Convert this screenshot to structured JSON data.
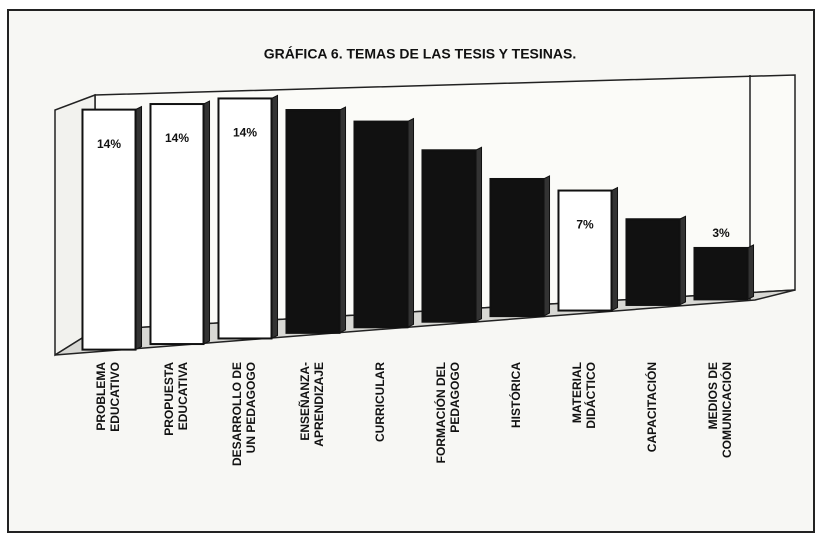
{
  "chart_data": {
    "type": "bar3d",
    "title": "GRÁFICA 6. TEMAS DE LAS TESIS Y TESINAS.",
    "categories": [
      [
        "PROBLEMA",
        "EDUCATIVO"
      ],
      [
        "PROPUESTA",
        "EDUCATIVA"
      ],
      [
        "DESARROLLO DE",
        "UN PEDAGOGO"
      ],
      [
        "ENSEÑANZA-",
        "APRENDIZAJE"
      ],
      [
        "CURRICULAR"
      ],
      [
        "FORMACIÓN DEL",
        "PEDAGOGO"
      ],
      [
        "HISTÓRICA"
      ],
      [
        "MATERIAL",
        "DIDÁCTICO"
      ],
      [
        "CAPACITACIÓN"
      ],
      [
        "MEDIOS DE",
        "COMUNICACIÓN"
      ]
    ],
    "values": [
      14,
      14,
      14,
      13,
      12,
      10,
      8,
      7,
      5,
      3
    ],
    "value_labels": [
      "14%",
      "14%",
      "14%",
      null,
      null,
      null,
      null,
      "7%",
      null,
      "3%"
    ],
    "colors": [
      "#ffffff",
      "#ffffff",
      "#ffffff",
      "#111111",
      "#111111",
      "#111111",
      "#111111",
      "#ffffff",
      "#111111",
      "#111111"
    ],
    "ylim": [
      0,
      14
    ]
  }
}
